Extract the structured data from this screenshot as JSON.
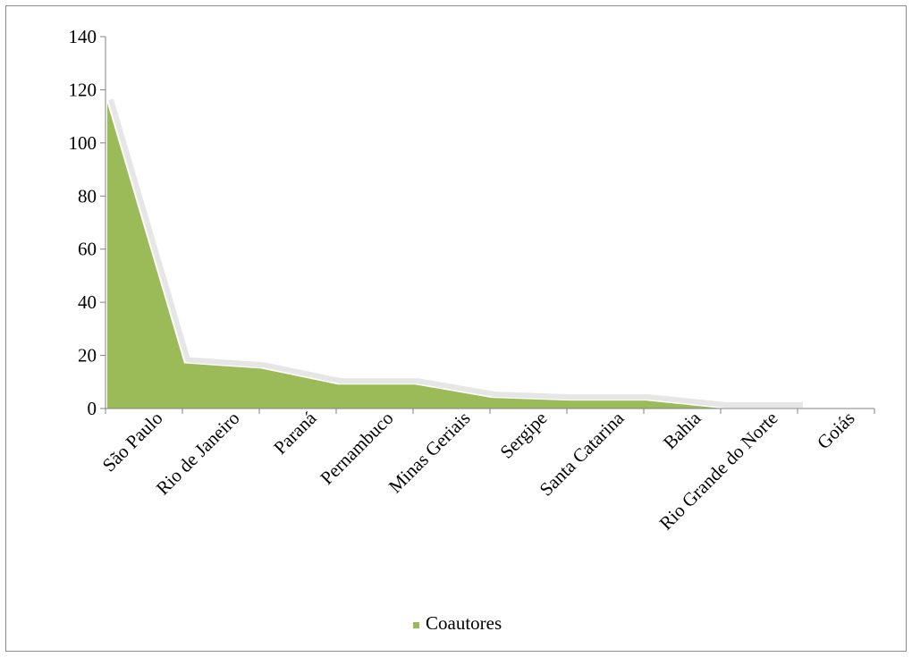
{
  "chart_data": {
    "type": "area",
    "categories": [
      "São Paulo",
      "Rio de Janeiro",
      "Paraná",
      "Pernambuco",
      "Minas Geriais",
      "Sergipe",
      "Santa Catarina",
      "Bahia",
      "Rio Grande do Norte",
      "Goiás"
    ],
    "series": [
      {
        "name": "Coautores",
        "values": [
          115,
          17,
          15,
          9,
          9,
          4,
          3,
          3,
          0,
          0
        ],
        "color": "#9bbb59"
      }
    ],
    "y_ticks": [
      "0",
      "20",
      "40",
      "60",
      "80",
      "100",
      "120",
      "140"
    ],
    "ylim": [
      0,
      140
    ],
    "title": "",
    "xlabel": "",
    "ylabel": "",
    "grid": false,
    "legend_position": "bottom"
  }
}
